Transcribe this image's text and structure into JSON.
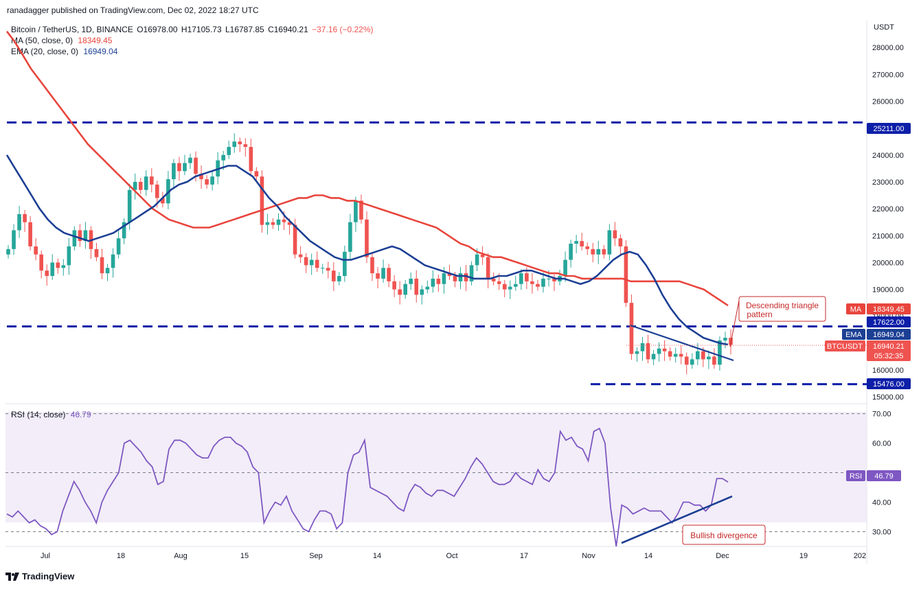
{
  "header": {
    "published": "ranadagger published on TradingView.com, Dec 02, 2022 18:27 UTC"
  },
  "legend": {
    "symbol": "Bitcoin / TetherUS, 1D, BINANCE",
    "open": "O16978.00",
    "high": "H17105.73",
    "low": "L16787.85",
    "close": "C16940.21",
    "change": "−37.16 (−0.22%)",
    "ma_label": "MA (50, close, 0)",
    "ma_value": "18349.45",
    "ema_label": "EMA (20, close, 0)",
    "ema_value": "16949.04"
  },
  "price_axis": {
    "unit": "USDT",
    "ticks": [
      "28000.00",
      "27000.00",
      "26000.00",
      "25000.00",
      "24000.00",
      "23000.00",
      "22000.00",
      "21000.00",
      "20000.00",
      "19000.00",
      "18000.00",
      "17000.00",
      "16000.00",
      "15000.00"
    ]
  },
  "badges": {
    "resistance_high": "25211.00",
    "ma_tag": "MA",
    "ma_value": "18349.45",
    "resistance_low": "17622.00",
    "ema_tag": "EMA",
    "ema_value": "16949.04",
    "symbol_tag": "BTCUSDT",
    "last_price": "16940.21",
    "countdown": "05:32:35",
    "support": "15476.00",
    "rsi_tag": "RSI",
    "rsi_value": "46.79"
  },
  "annotations": {
    "triangle_line1": "Descending triangle",
    "triangle_line2": "pattern",
    "divergence": "Bullish divergence"
  },
  "rsi_axis": {
    "ticks": [
      "70.00",
      "60.00",
      "50.00",
      "40.00",
      "30.00"
    ]
  },
  "rsi_legend": {
    "label": "RSI (14, close)",
    "value": "46.79"
  },
  "time_axis": {
    "ticks": [
      "Jul",
      "18",
      "Aug",
      "15",
      "Sep",
      "14",
      "Oct",
      "17",
      "Nov",
      "14",
      "Dec",
      "19",
      "202"
    ]
  },
  "footer": {
    "brand": "TradingView"
  },
  "colors": {
    "up": "#26a69a",
    "down": "#ef5350",
    "ma": "#e8453c",
    "ema": "#1c3f94",
    "dashed": "#0d1fa8",
    "rsi": "#7e57c2",
    "rsi_band": "#ede7f6",
    "badge_blue": "#0d1fa8"
  },
  "chart_data": {
    "type": "candlestick",
    "title": "Bitcoin / TetherUS, 1D, BINANCE",
    "ylabel": "USDT",
    "ylim": [
      14750,
      29000
    ],
    "resistance_levels": [
      25211.0,
      17622.0
    ],
    "support_levels": [
      15476.0
    ],
    "ma50_last": 18349.45,
    "ema20_last": 16949.04,
    "last_close": 16940.21,
    "close": [
      20500,
      21200,
      21800,
      21500,
      20600,
      20300,
      19700,
      19500,
      20000,
      19800,
      19900,
      20600,
      21200,
      20800,
      21200,
      20500,
      20200,
      19600,
      19800,
      20300,
      20900,
      21500,
      22700,
      23000,
      22700,
      23200,
      22900,
      22400,
      22200,
      23100,
      23700,
      23400,
      23700,
      23900,
      23300,
      23100,
      22900,
      23200,
      23800,
      24000,
      24300,
      24500,
      24400,
      24300,
      23400,
      23200,
      21400,
      21500,
      21400,
      21600,
      21500,
      21400,
      20300,
      20200,
      19900,
      20100,
      19800,
      19800,
      19700,
      19300,
      19500,
      20400,
      21500,
      22300,
      21600,
      20200,
      19600,
      19400,
      19800,
      19300,
      19000,
      18800,
      19200,
      19400,
      18800,
      19000,
      19100,
      19400,
      19200,
      19600,
      19500,
      19300,
      19600,
      19300,
      19900,
      20300,
      20200,
      19400,
      19300,
      19200,
      19000,
      19100,
      19200,
      19600,
      19300,
      19200,
      19100,
      19400,
      19400,
      19300,
      19500,
      20100,
      20700,
      20800,
      20600,
      20500,
      20300,
      20500,
      20300,
      21200,
      20900,
      20600,
      18500,
      16600,
      16700,
      17000,
      16400,
      16600,
      16800,
      16700,
      16500,
      16600,
      16500,
      16200,
      16400,
      16700,
      16400,
      16500,
      16200,
      17100,
      17200,
      16940
    ],
    "ma50": [
      28600,
      28200,
      27700,
      27200,
      26800,
      26400,
      26000,
      25600,
      25200,
      24800,
      24400,
      24100,
      23800,
      23500,
      23200,
      22900,
      22600,
      22300,
      22000,
      21800,
      21600,
      21500,
      21400,
      21300,
      21300,
      21300,
      21400,
      21500,
      21600,
      21700,
      21800,
      21900,
      22000,
      22100,
      22200,
      22300,
      22400,
      22400,
      22500,
      22500,
      22400,
      22400,
      22300,
      22300,
      22200,
      22100,
      22000,
      21900,
      21800,
      21700,
      21600,
      21500,
      21400,
      21300,
      21100,
      20900,
      20700,
      20600,
      20400,
      20300,
      20200,
      20200,
      20100,
      20000,
      19900,
      19800,
      19700,
      19600,
      19600,
      19500,
      19500,
      19400,
      19400,
      19400,
      19400,
      19400,
      19400,
      19300,
      19300,
      19300,
      19300,
      19300,
      19300,
      19300,
      19200,
      19100,
      19000,
      18800,
      18600,
      18400
    ],
    "ema20": [
      24000,
      23500,
      23000,
      22500,
      22000,
      21600,
      21300,
      21100,
      21000,
      20900,
      20800,
      20900,
      21000,
      21100,
      21300,
      21500,
      21700,
      21900,
      22100,
      22400,
      22700,
      22900,
      23000,
      23200,
      23300,
      23400,
      23500,
      23600,
      23600,
      23400,
      23200,
      22800,
      22400,
      22100,
      21700,
      21400,
      21100,
      20800,
      20600,
      20400,
      20200,
      20100,
      20100,
      20200,
      20300,
      20400,
      20500,
      20600,
      20500,
      20300,
      20100,
      19900,
      19800,
      19700,
      19600,
      19500,
      19500,
      19400,
      19400,
      19400,
      19500,
      19500,
      19600,
      19700,
      19700,
      19600,
      19500,
      19400,
      19400,
      19300,
      19200,
      19300,
      19500,
      19800,
      20100,
      20300,
      20400,
      20300,
      19900,
      19400,
      18800,
      18300,
      17900,
      17600,
      17400,
      17200,
      17100,
      17000,
      16949
    ],
    "rsi": [
      36,
      35,
      37,
      35,
      33,
      34,
      32,
      31,
      29,
      30,
      37,
      42,
      47,
      44,
      40,
      37,
      33,
      40,
      44,
      47,
      50,
      60,
      61,
      59,
      57,
      54,
      52,
      46,
      47,
      58,
      61,
      61,
      60,
      58,
      56,
      55,
      55,
      59,
      61,
      62,
      62,
      60,
      59,
      57,
      52,
      50,
      33,
      37,
      40,
      39,
      42,
      37,
      34,
      31,
      30,
      34,
      37,
      37,
      36,
      31,
      33,
      50,
      56,
      57,
      61,
      45,
      44,
      43,
      42,
      40,
      38,
      37,
      43,
      46,
      45,
      43,
      42,
      44,
      44,
      43,
      42,
      45,
      48,
      52,
      55,
      53,
      50,
      47,
      46,
      46,
      47,
      50,
      48,
      47,
      46,
      51,
      48,
      47,
      50,
      64,
      61,
      62,
      59,
      58,
      54,
      64,
      65,
      60,
      38,
      25,
      39,
      38,
      36,
      37,
      38,
      37,
      37,
      37,
      35,
      33,
      36,
      40,
      40,
      39,
      39,
      37,
      39,
      48,
      48,
      46.79
    ],
    "rsi_ylim": [
      25,
      72
    ],
    "rsi_levels": [
      70,
      50,
      30
    ],
    "x_ticks": [
      "Jul",
      "18",
      "Aug",
      "15",
      "Sep",
      "14",
      "Oct",
      "17",
      "Nov",
      "14",
      "Dec",
      "19",
      "202"
    ],
    "legend": "top-left",
    "grid": false
  }
}
